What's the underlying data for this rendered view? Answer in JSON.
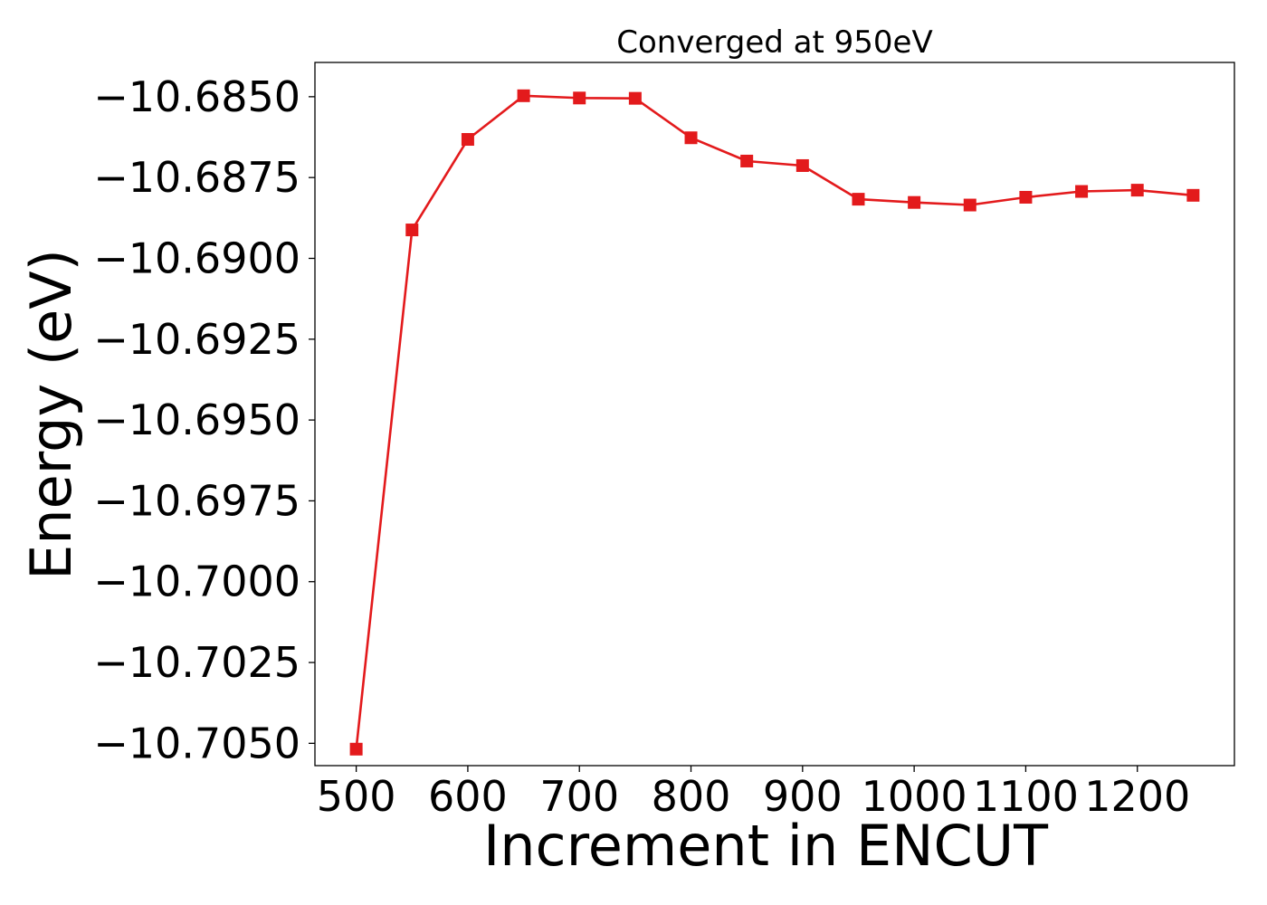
{
  "chart_data": {
    "type": "line",
    "title": "Converged at 950eV",
    "xlabel": "Increment in ENCUT",
    "ylabel": "Energy (eV)",
    "x": [
      500,
      550,
      600,
      650,
      700,
      750,
      800,
      850,
      900,
      950,
      1000,
      1050,
      1100,
      1150,
      1200,
      1250
    ],
    "series": [
      {
        "values": [
          -10.70518,
          -10.68912,
          -10.68632,
          -10.68497,
          -10.68504,
          -10.68505,
          -10.68627,
          -10.68699,
          -10.68713,
          -10.68817,
          -10.68827,
          -10.68835,
          -10.68811,
          -10.68793,
          -10.68789,
          -10.68805
        ],
        "color": "#e31a1c",
        "marker": "square"
      }
    ],
    "xticks": [
      500,
      600,
      700,
      800,
      900,
      1000,
      1100,
      1200
    ],
    "xtick_labels": [
      "500",
      "600",
      "700",
      "800",
      "900",
      "1000",
      "1100",
      "1200"
    ],
    "yticks": [
      -10.685,
      -10.6875,
      -10.69,
      -10.6925,
      -10.695,
      -10.6975,
      -10.7,
      -10.7025,
      -10.705
    ],
    "ytick_labels": [
      "−10.6850",
      "−10.6875",
      "−10.6900",
      "−10.6925",
      "−10.6950",
      "−10.6975",
      "−10.7000",
      "−10.7025",
      "−10.7050"
    ],
    "xlim": [
      463,
      1287
    ],
    "ylim": [
      -10.70569,
      -10.68394
    ],
    "grid": false,
    "legend": "none"
  }
}
